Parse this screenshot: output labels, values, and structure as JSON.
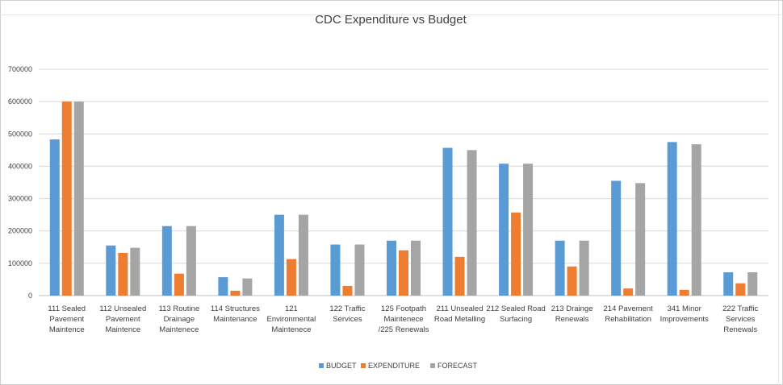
{
  "chart_data": {
    "type": "bar",
    "title": "CDC Expenditure vs Budget",
    "xlabel": "",
    "ylabel": "",
    "ylim": [
      0,
      700000
    ],
    "yticks": [
      0,
      100000,
      200000,
      300000,
      400000,
      500000,
      600000,
      700000
    ],
    "ytick_labels": [
      "0",
      "100000",
      "200000",
      "300000",
      "400000",
      "500000",
      "600000",
      "700000"
    ],
    "grid": true,
    "legend_position": "bottom",
    "categories": [
      [
        "111 Sealed",
        "Pavement",
        "Maintence"
      ],
      [
        "112 Unsealed",
        "Pavement",
        "Maintence"
      ],
      [
        "113 Routine",
        "Drainage",
        "Maintenece"
      ],
      [
        "114 Structures",
        "Maintenance"
      ],
      [
        "121",
        "Environmental",
        "Maintenece"
      ],
      [
        "122 Traffic",
        "Services"
      ],
      [
        "125 Footpath",
        "Maintenece",
        "/225 Renewals"
      ],
      [
        "211 Unsealed",
        "Road Metalling"
      ],
      [
        "212 Sealed Road",
        "Surfacing"
      ],
      [
        "213 Drainge",
        "Renewals"
      ],
      [
        "214 Pavement",
        "Rehabilitation"
      ],
      [
        "341 Minor",
        "Improvements"
      ],
      [
        "222 Traffic",
        "Services",
        "Renewals"
      ]
    ],
    "series": [
      {
        "name": "BUDGET",
        "color": "#5B9BD5",
        "values": [
          483000,
          155000,
          215000,
          57000,
          250000,
          158000,
          170000,
          457000,
          408000,
          170000,
          355000,
          475000,
          72000
        ]
      },
      {
        "name": "EXPENDITURE",
        "color": "#ED7D31",
        "values": [
          600000,
          132000,
          68000,
          15000,
          113000,
          30000,
          140000,
          120000,
          257000,
          90000,
          22000,
          18000,
          38000
        ]
      },
      {
        "name": "FORECAST",
        "color": "#A5A5A5",
        "values": [
          600000,
          148000,
          215000,
          53000,
          250000,
          158000,
          170000,
          450000,
          408000,
          170000,
          348000,
          468000,
          72000
        ]
      }
    ]
  }
}
